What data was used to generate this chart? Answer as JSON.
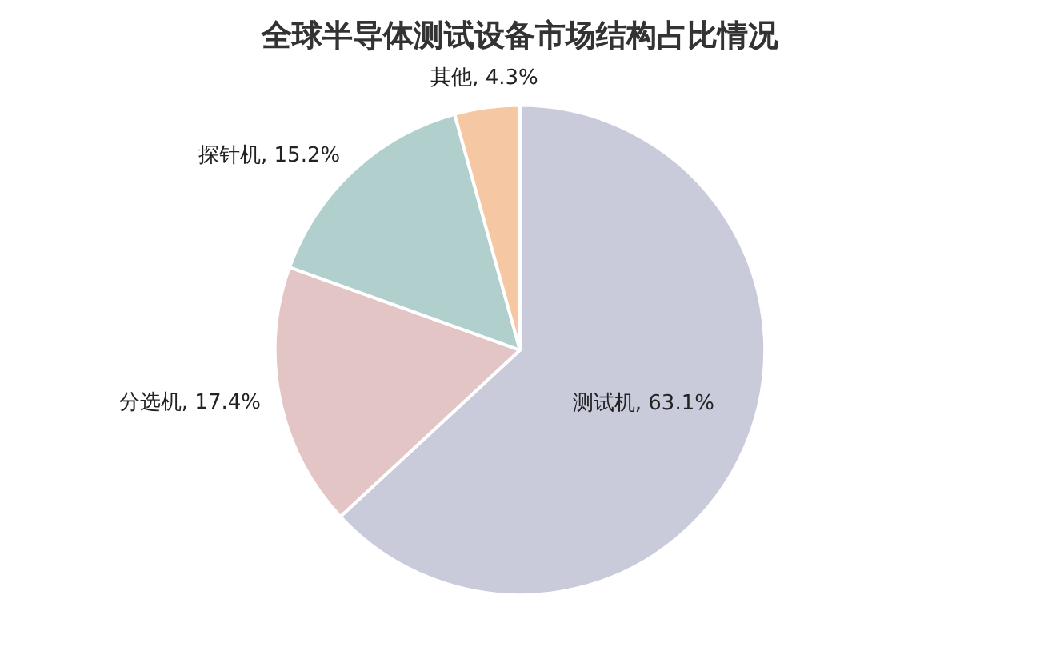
{
  "chart_data": {
    "type": "pie",
    "title": "全球半导体测试设备市场结构占比情况",
    "categories": [
      "测试机",
      "分选机",
      "探针机",
      "其他"
    ],
    "values": [
      63.1,
      17.4,
      15.2,
      4.3
    ],
    "colors": [
      "#c9cbdb",
      "#e2c5c4",
      "#b0cfcd",
      "#f5c7a2"
    ],
    "value_labels": [
      "63.1%",
      "17.4%",
      "15.2%",
      "4.3%"
    ],
    "legend": false
  }
}
